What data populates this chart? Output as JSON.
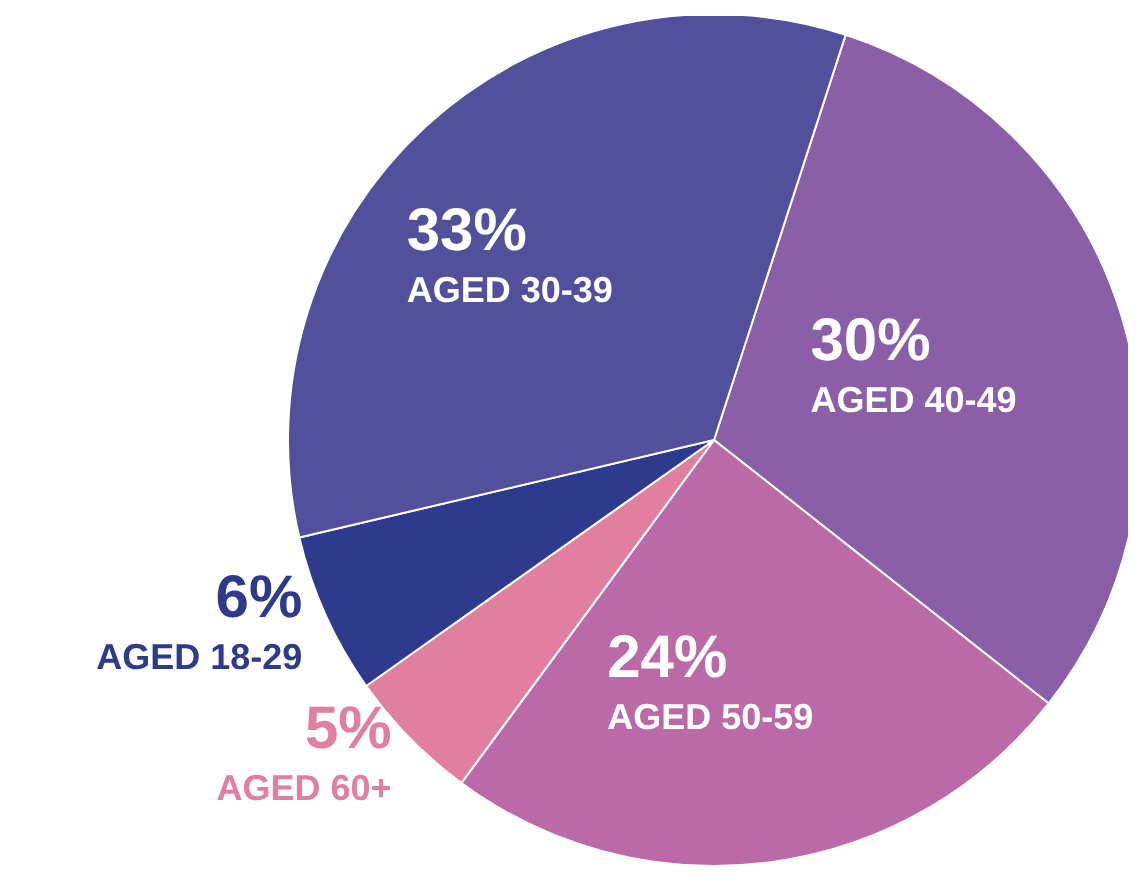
{
  "chart_data": {
    "type": "pie",
    "categories": [
      "AGED 40-49",
      "AGED 50-59",
      "AGED 60+",
      "AGED 18-29",
      "AGED 30-39"
    ],
    "values": [
      30,
      24,
      5,
      6,
      33
    ],
    "value_labels": [
      "30%",
      "24%",
      "5%",
      "6%",
      "33%"
    ],
    "colors": [
      "#8b5ea8",
      "#bb6aa8",
      "#e07fa0",
      "#2e3a8c",
      "#52509a"
    ],
    "legend": false
  }
}
